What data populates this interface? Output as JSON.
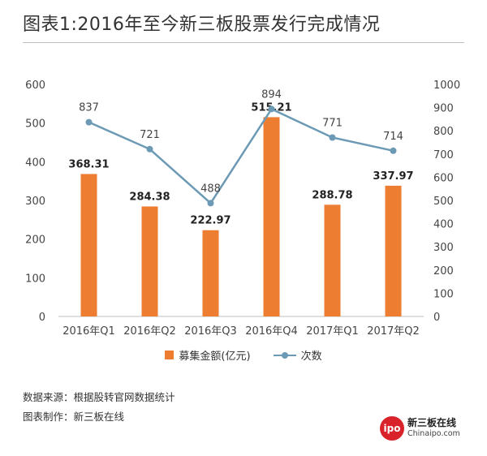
{
  "title": "图表1:2016年至今新三板股票发行完成情况",
  "chart_data": {
    "type": "bar+line",
    "categories": [
      "2016年Q1",
      "2016年Q2",
      "2016年Q3",
      "2016年Q4",
      "2017年Q1",
      "2017年Q2"
    ],
    "series": [
      {
        "name": "募集金额(亿元)",
        "type": "bar",
        "axis": "left",
        "color": "#ED7D31",
        "values": [
          368.31,
          284.38,
          222.97,
          515.21,
          288.78,
          337.97
        ]
      },
      {
        "name": "次数",
        "type": "line",
        "axis": "right",
        "color": "#6C9AB5",
        "values": [
          837,
          721,
          488,
          894,
          771,
          714
        ]
      }
    ],
    "left_axis": {
      "min": 0,
      "max": 600,
      "ticks": [
        0,
        100,
        200,
        300,
        400,
        500,
        600
      ]
    },
    "right_axis": {
      "min": 0,
      "max": 1000,
      "ticks": [
        0,
        100,
        200,
        300,
        400,
        500,
        600,
        700,
        800,
        900,
        1000
      ]
    },
    "grid": false,
    "legend_position": "bottom"
  },
  "footer": {
    "source": "数据来源：根据股转官网数据统计",
    "author": "图表制作：新三板在线"
  },
  "logo": {
    "mark": "ipo",
    "name": "新三板在线",
    "url": "Chinaipo.com"
  }
}
